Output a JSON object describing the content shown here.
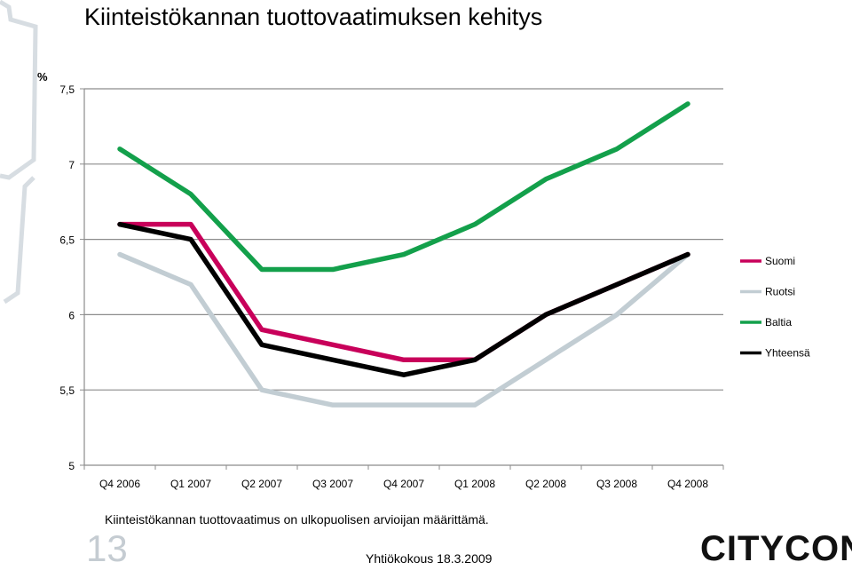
{
  "page": {
    "title": "Kiinteistökannan tuottovaatimuksen kehitys",
    "unit_label": "%",
    "footnote": "Kiinteistökannan tuottovaatimus on ulkopuolisen arvioijan määrittämä.",
    "page_number": "13",
    "event": "Yhtiökokous 18.3.2009",
    "logo_text": "CITYCON"
  },
  "chart_data": {
    "type": "line",
    "title": "Kiinteistökannan tuottovaatimuksen kehitys",
    "ylabel": "%",
    "xlabel": "",
    "ylim": [
      5,
      7.5
    ],
    "yticks": [
      5,
      5.5,
      6,
      6.5,
      7,
      7.5
    ],
    "ytick_labels": [
      "5",
      "5,5",
      "6",
      "6,5",
      "7",
      "7,5"
    ],
    "grid": "horizontal",
    "legend_position": "right",
    "categories": [
      "Q4 2006",
      "Q1 2007",
      "Q2 2007",
      "Q3 2007",
      "Q4 2007",
      "Q1 2008",
      "Q2 2008",
      "Q3 2008",
      "Q4 2008"
    ],
    "series": [
      {
        "name": "Suomi",
        "color": "#c8005a",
        "values": [
          6.6,
          6.6,
          5.9,
          5.8,
          5.7,
          5.7,
          6.0,
          6.2,
          6.4
        ]
      },
      {
        "name": "Ruotsi",
        "color": "#c2cdd3",
        "values": [
          6.4,
          6.2,
          5.5,
          5.4,
          5.4,
          5.4,
          5.7,
          6.0,
          6.4
        ]
      },
      {
        "name": "Baltia",
        "color": "#13a04b",
        "values": [
          7.1,
          6.8,
          6.3,
          6.3,
          6.4,
          6.6,
          6.9,
          7.1,
          7.4
        ]
      },
      {
        "name": "Yhteensä",
        "color": "#000000",
        "values": [
          6.6,
          6.5,
          5.8,
          5.7,
          5.6,
          5.7,
          6.0,
          6.2,
          6.4
        ]
      }
    ]
  }
}
